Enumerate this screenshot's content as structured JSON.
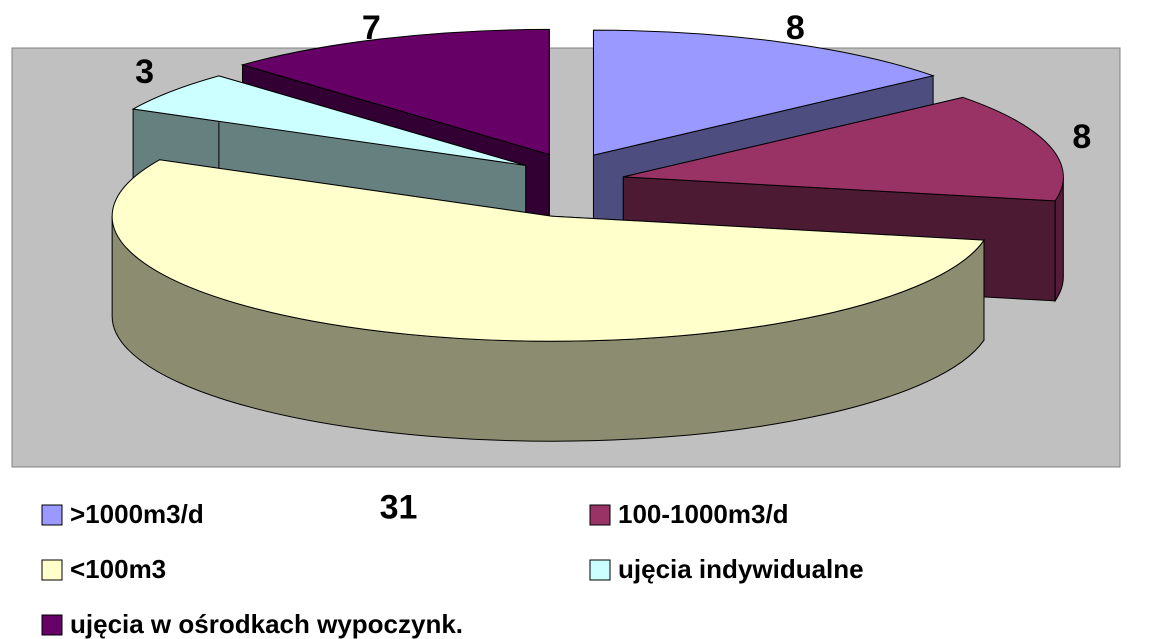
{
  "chart_data": {
    "type": "pie3d",
    "categories": [
      ">1000m3/d",
      "100-1000m3/d",
      "<100m3",
      "ujęcia indywidualne",
      "ujęcia w ośrodkach wypoczynk."
    ],
    "values": [
      8,
      8,
      31,
      3,
      7
    ],
    "colors": [
      "#9999ff",
      "#993366",
      "#ffffcc",
      "#ccffff",
      "#660066"
    ],
    "legend": "bottom"
  }
}
